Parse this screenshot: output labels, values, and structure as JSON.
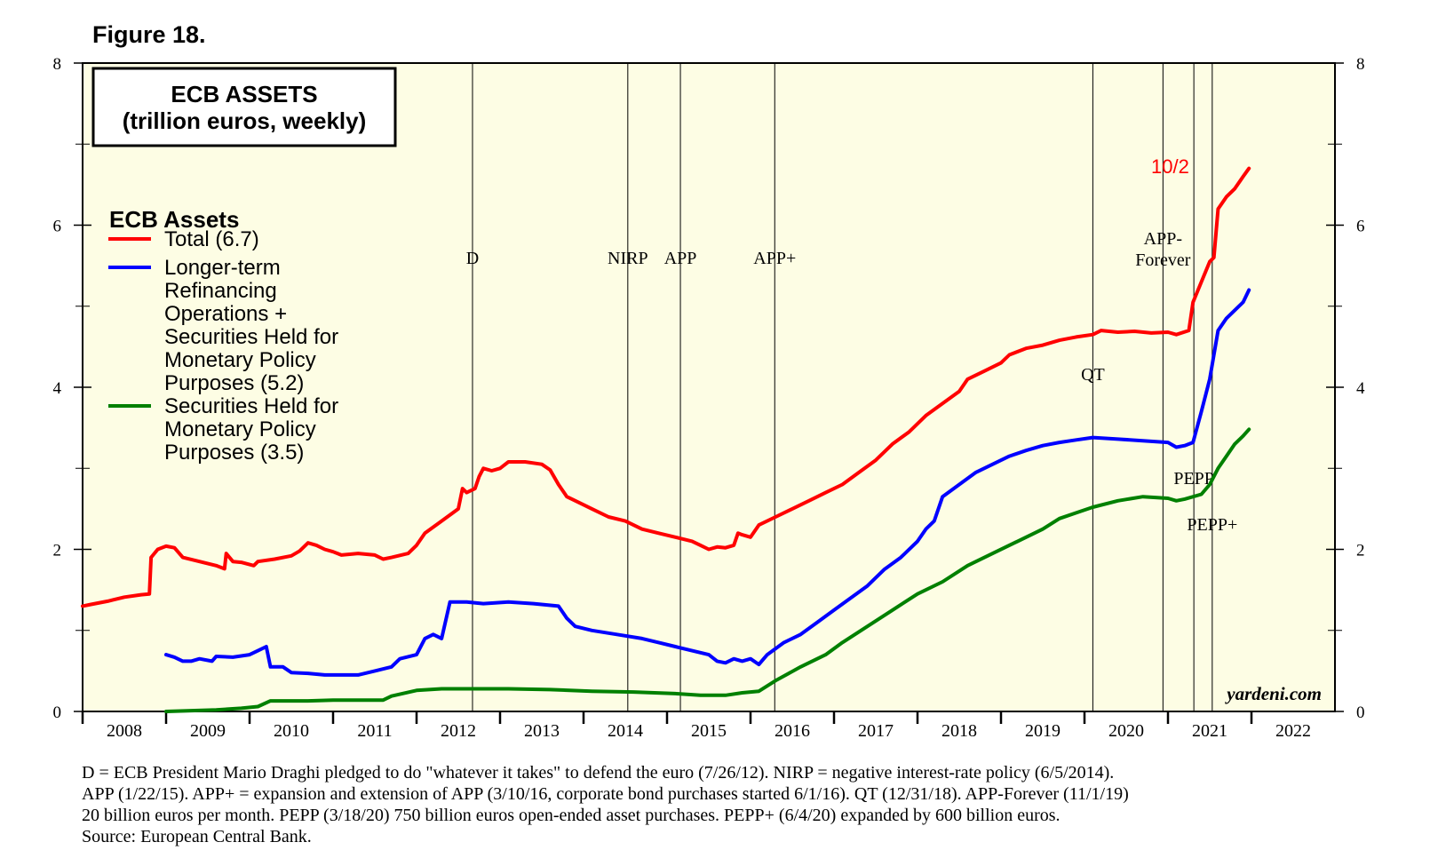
{
  "figure_label": "Figure 18.",
  "colors": {
    "plot_bg": "#fdfde4",
    "total": "#ff0000",
    "ltro": "#0000ff",
    "smp": "#008000",
    "axis": "#000000"
  },
  "chart_data": {
    "type": "line",
    "title": "ECB ASSETS",
    "subtitle": "(trillion euros, weekly)",
    "legend_title": "ECB Assets",
    "legend_placement": "top-left",
    "x_range": [
      2007.9,
      2022.9
    ],
    "ylim": [
      0,
      8
    ],
    "y_ticks": [
      0,
      2,
      4,
      6,
      8
    ],
    "x_tick_labels": [
      "2008",
      "2009",
      "2010",
      "2011",
      "2012",
      "2013",
      "2014",
      "2015",
      "2016",
      "2017",
      "2018",
      "2019",
      "2020",
      "2021",
      "2022"
    ],
    "series": [
      {
        "name": "Total",
        "legend_lines": [
          "Total (6.7)"
        ],
        "color": "#ff0000",
        "last_label": "10/2",
        "points": [
          [
            2007.9,
            1.3
          ],
          [
            2008.0,
            1.32
          ],
          [
            2008.2,
            1.36
          ],
          [
            2008.4,
            1.41
          ],
          [
            2008.6,
            1.44
          ],
          [
            2008.7,
            1.45
          ],
          [
            2008.72,
            1.9
          ],
          [
            2008.8,
            2.0
          ],
          [
            2008.9,
            2.04
          ],
          [
            2009.0,
            2.02
          ],
          [
            2009.1,
            1.9
          ],
          [
            2009.3,
            1.85
          ],
          [
            2009.5,
            1.8
          ],
          [
            2009.6,
            1.76
          ],
          [
            2009.62,
            1.95
          ],
          [
            2009.7,
            1.85
          ],
          [
            2009.8,
            1.84
          ],
          [
            2009.95,
            1.8
          ],
          [
            2010.0,
            1.85
          ],
          [
            2010.2,
            1.88
          ],
          [
            2010.4,
            1.92
          ],
          [
            2010.5,
            1.98
          ],
          [
            2010.6,
            2.08
          ],
          [
            2010.7,
            2.05
          ],
          [
            2010.8,
            2.0
          ],
          [
            2010.9,
            1.97
          ],
          [
            2011.0,
            1.93
          ],
          [
            2011.2,
            1.95
          ],
          [
            2011.4,
            1.93
          ],
          [
            2011.5,
            1.88
          ],
          [
            2011.6,
            1.9
          ],
          [
            2011.8,
            1.95
          ],
          [
            2011.9,
            2.05
          ],
          [
            2012.0,
            2.2
          ],
          [
            2012.2,
            2.35
          ],
          [
            2012.4,
            2.5
          ],
          [
            2012.45,
            2.75
          ],
          [
            2012.5,
            2.7
          ],
          [
            2012.6,
            2.75
          ],
          [
            2012.65,
            2.9
          ],
          [
            2012.7,
            3.0
          ],
          [
            2012.8,
            2.97
          ],
          [
            2012.9,
            3.0
          ],
          [
            2013.0,
            3.08
          ],
          [
            2013.2,
            3.08
          ],
          [
            2013.4,
            3.05
          ],
          [
            2013.5,
            2.98
          ],
          [
            2013.6,
            2.8
          ],
          [
            2013.7,
            2.65
          ],
          [
            2013.9,
            2.55
          ],
          [
            2014.0,
            2.5
          ],
          [
            2014.2,
            2.4
          ],
          [
            2014.4,
            2.35
          ],
          [
            2014.6,
            2.25
          ],
          [
            2014.8,
            2.2
          ],
          [
            2015.0,
            2.15
          ],
          [
            2015.2,
            2.1
          ],
          [
            2015.3,
            2.05
          ],
          [
            2015.4,
            2.0
          ],
          [
            2015.5,
            2.03
          ],
          [
            2015.6,
            2.02
          ],
          [
            2015.7,
            2.05
          ],
          [
            2015.75,
            2.2
          ],
          [
            2015.8,
            2.18
          ],
          [
            2015.9,
            2.15
          ],
          [
            2016.0,
            2.3
          ],
          [
            2016.2,
            2.4
          ],
          [
            2016.4,
            2.5
          ],
          [
            2016.6,
            2.6
          ],
          [
            2016.8,
            2.7
          ],
          [
            2017.0,
            2.8
          ],
          [
            2017.2,
            2.95
          ],
          [
            2017.4,
            3.1
          ],
          [
            2017.6,
            3.3
          ],
          [
            2017.8,
            3.45
          ],
          [
            2018.0,
            3.65
          ],
          [
            2018.2,
            3.8
          ],
          [
            2018.4,
            3.95
          ],
          [
            2018.5,
            4.1
          ],
          [
            2018.7,
            4.2
          ],
          [
            2018.9,
            4.3
          ],
          [
            2019.0,
            4.4
          ],
          [
            2019.2,
            4.48
          ],
          [
            2019.4,
            4.52
          ],
          [
            2019.6,
            4.58
          ],
          [
            2019.8,
            4.62
          ],
          [
            2020.0,
            4.65
          ],
          [
            2020.1,
            4.7
          ],
          [
            2020.3,
            4.68
          ],
          [
            2020.5,
            4.69
          ],
          [
            2020.7,
            4.67
          ],
          [
            2020.9,
            4.68
          ],
          [
            2021.0,
            4.65
          ],
          [
            2021.15,
            4.7
          ],
          [
            2021.2,
            5.05
          ],
          [
            2021.3,
            5.3
          ],
          [
            2021.4,
            5.55
          ],
          [
            2021.45,
            5.6
          ],
          [
            2021.5,
            6.2
          ],
          [
            2021.6,
            6.35
          ],
          [
            2021.7,
            6.45
          ],
          [
            2021.8,
            6.6
          ],
          [
            2021.87,
            6.7
          ]
        ]
      },
      {
        "name": "Longer-term Refinancing Operations + Securities Held for Monetary Policy Purposes",
        "legend_lines": [
          "Longer-term",
          "Refinancing",
          "Operations +",
          "Securities Held for",
          "Monetary Policy",
          "Purposes (5.2)"
        ],
        "color": "#0000ff",
        "points": [
          [
            2008.9,
            0.7
          ],
          [
            2009.0,
            0.67
          ],
          [
            2009.1,
            0.62
          ],
          [
            2009.2,
            0.62
          ],
          [
            2009.3,
            0.65
          ],
          [
            2009.45,
            0.62
          ],
          [
            2009.5,
            0.68
          ],
          [
            2009.7,
            0.67
          ],
          [
            2009.9,
            0.7
          ],
          [
            2010.0,
            0.75
          ],
          [
            2010.1,
            0.8
          ],
          [
            2010.15,
            0.55
          ],
          [
            2010.3,
            0.55
          ],
          [
            2010.4,
            0.48
          ],
          [
            2010.6,
            0.47
          ],
          [
            2010.8,
            0.45
          ],
          [
            2011.0,
            0.45
          ],
          [
            2011.2,
            0.45
          ],
          [
            2011.4,
            0.5
          ],
          [
            2011.6,
            0.55
          ],
          [
            2011.7,
            0.65
          ],
          [
            2011.9,
            0.7
          ],
          [
            2012.0,
            0.9
          ],
          [
            2012.1,
            0.95
          ],
          [
            2012.2,
            0.9
          ],
          [
            2012.3,
            1.35
          ],
          [
            2012.5,
            1.35
          ],
          [
            2012.7,
            1.33
          ],
          [
            2013.0,
            1.35
          ],
          [
            2013.3,
            1.33
          ],
          [
            2013.6,
            1.3
          ],
          [
            2013.7,
            1.15
          ],
          [
            2013.8,
            1.05
          ],
          [
            2014.0,
            1.0
          ],
          [
            2014.3,
            0.95
          ],
          [
            2014.6,
            0.9
          ],
          [
            2014.8,
            0.85
          ],
          [
            2015.0,
            0.8
          ],
          [
            2015.2,
            0.75
          ],
          [
            2015.4,
            0.7
          ],
          [
            2015.5,
            0.62
          ],
          [
            2015.6,
            0.6
          ],
          [
            2015.7,
            0.65
          ],
          [
            2015.8,
            0.62
          ],
          [
            2015.9,
            0.65
          ],
          [
            2016.0,
            0.58
          ],
          [
            2016.1,
            0.7
          ],
          [
            2016.3,
            0.85
          ],
          [
            2016.5,
            0.95
          ],
          [
            2016.7,
            1.1
          ],
          [
            2016.9,
            1.25
          ],
          [
            2017.1,
            1.4
          ],
          [
            2017.3,
            1.55
          ],
          [
            2017.5,
            1.75
          ],
          [
            2017.7,
            1.9
          ],
          [
            2017.9,
            2.1
          ],
          [
            2018.0,
            2.25
          ],
          [
            2018.1,
            2.35
          ],
          [
            2018.2,
            2.65
          ],
          [
            2018.4,
            2.8
          ],
          [
            2018.6,
            2.95
          ],
          [
            2018.8,
            3.05
          ],
          [
            2019.0,
            3.15
          ],
          [
            2019.2,
            3.22
          ],
          [
            2019.4,
            3.28
          ],
          [
            2019.6,
            3.32
          ],
          [
            2019.8,
            3.35
          ],
          [
            2020.0,
            3.38
          ],
          [
            2020.3,
            3.36
          ],
          [
            2020.6,
            3.34
          ],
          [
            2020.9,
            3.32
          ],
          [
            2021.0,
            3.26
          ],
          [
            2021.1,
            3.28
          ],
          [
            2021.2,
            3.32
          ],
          [
            2021.3,
            3.7
          ],
          [
            2021.4,
            4.1
          ],
          [
            2021.5,
            4.7
          ],
          [
            2021.6,
            4.85
          ],
          [
            2021.7,
            4.95
          ],
          [
            2021.8,
            5.05
          ],
          [
            2021.87,
            5.2
          ]
        ]
      },
      {
        "name": "Securities Held for Monetary Policy Purposes",
        "legend_lines": [
          "Securities Held for",
          "Monetary Policy",
          "Purposes (3.5)"
        ],
        "color": "#008000",
        "points": [
          [
            2008.9,
            0.0
          ],
          [
            2009.2,
            0.01
          ],
          [
            2009.5,
            0.02
          ],
          [
            2009.8,
            0.04
          ],
          [
            2010.0,
            0.06
          ],
          [
            2010.15,
            0.13
          ],
          [
            2010.3,
            0.13
          ],
          [
            2010.6,
            0.13
          ],
          [
            2010.9,
            0.14
          ],
          [
            2011.2,
            0.14
          ],
          [
            2011.5,
            0.14
          ],
          [
            2011.6,
            0.19
          ],
          [
            2011.9,
            0.26
          ],
          [
            2012.2,
            0.28
          ],
          [
            2012.5,
            0.28
          ],
          [
            2013.0,
            0.28
          ],
          [
            2013.5,
            0.27
          ],
          [
            2014.0,
            0.25
          ],
          [
            2014.5,
            0.24
          ],
          [
            2015.0,
            0.22
          ],
          [
            2015.3,
            0.2
          ],
          [
            2015.6,
            0.2
          ],
          [
            2015.8,
            0.23
          ],
          [
            2016.0,
            0.25
          ],
          [
            2016.2,
            0.38
          ],
          [
            2016.5,
            0.55
          ],
          [
            2016.8,
            0.7
          ],
          [
            2017.0,
            0.85
          ],
          [
            2017.3,
            1.05
          ],
          [
            2017.6,
            1.25
          ],
          [
            2017.9,
            1.45
          ],
          [
            2018.2,
            1.6
          ],
          [
            2018.5,
            1.8
          ],
          [
            2018.8,
            1.95
          ],
          [
            2019.1,
            2.1
          ],
          [
            2019.4,
            2.25
          ],
          [
            2019.6,
            2.38
          ],
          [
            2019.8,
            2.45
          ],
          [
            2020.0,
            2.52
          ],
          [
            2020.3,
            2.6
          ],
          [
            2020.6,
            2.65
          ],
          [
            2020.9,
            2.63
          ],
          [
            2021.0,
            2.6
          ],
          [
            2021.1,
            2.62
          ],
          [
            2021.3,
            2.68
          ],
          [
            2021.4,
            2.8
          ],
          [
            2021.5,
            3.0
          ],
          [
            2021.6,
            3.15
          ],
          [
            2021.7,
            3.3
          ],
          [
            2021.8,
            3.4
          ],
          [
            2021.87,
            3.48
          ]
        ]
      }
    ],
    "events": [
      {
        "label": "D",
        "x": 2012.57
      },
      {
        "label": "NIRP",
        "x": 2014.43
      },
      {
        "label": "APP",
        "x": 2015.06
      },
      {
        "label": "APP+",
        "x": 2016.19
      },
      {
        "label": "QT",
        "x": 2020.0
      },
      {
        "label": "APP- Forever",
        "x": 2020.84
      },
      {
        "label": "PEPP",
        "x": 2021.21
      },
      {
        "label": "PEPP+",
        "x": 2021.43
      }
    ],
    "watermark": "yardeni.com"
  },
  "footnote_lines": [
    "D = ECB President Mario Draghi pledged to do \"whatever it takes\" to defend the euro (7/26/12). NIRP = negative interest-rate policy (6/5/2014).",
    "APP (1/22/15). APP+ = expansion and extension of APP (3/10/16, corporate bond purchases started 6/1/16). QT (12/31/18). APP-Forever (11/1/19)",
    "20 billion euros per month. PEPP (3/18/20) 750 billion euros open-ended asset purchases. PEPP+ (6/4/20) expanded by 600 billion euros.",
    "Source: European Central Bank."
  ]
}
